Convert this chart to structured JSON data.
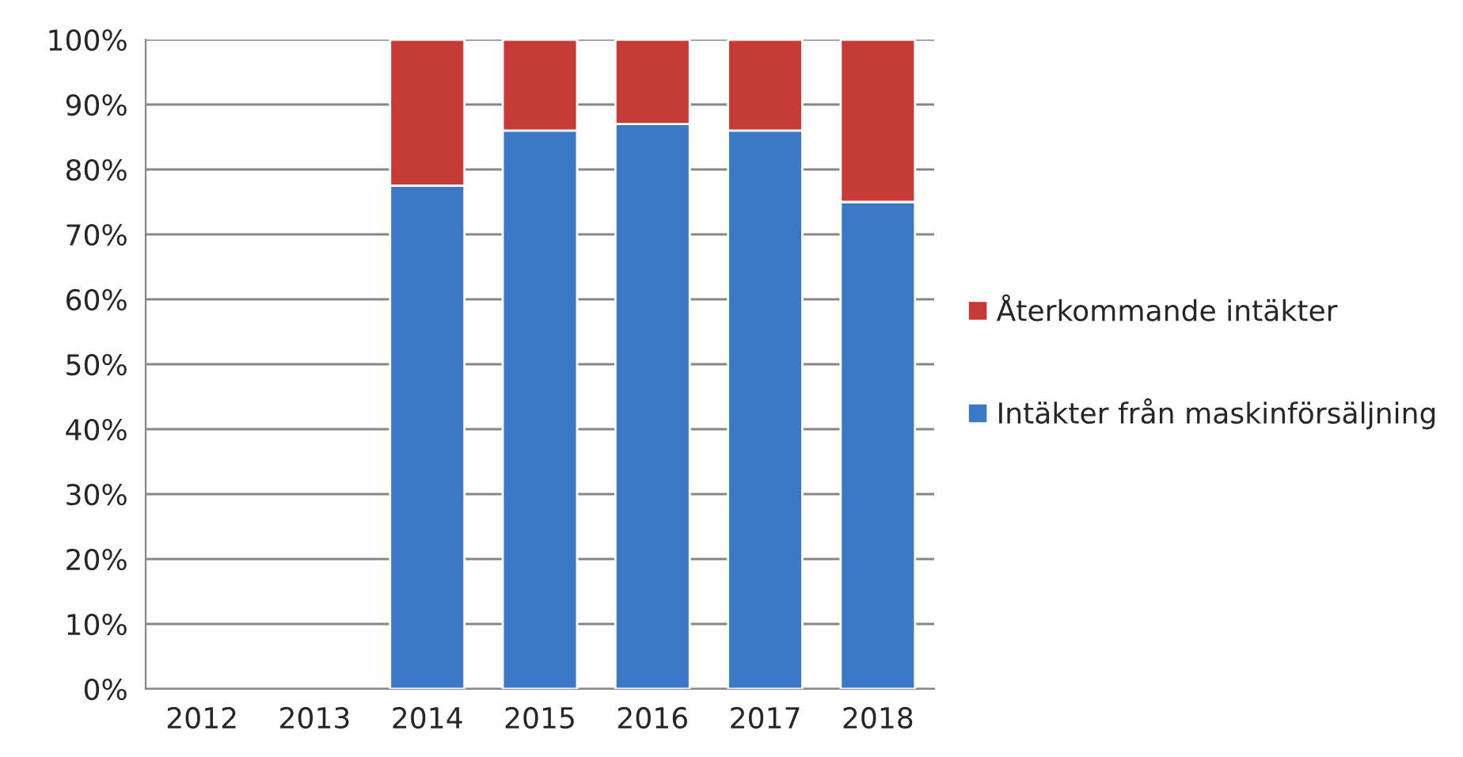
{
  "chart_data": {
    "type": "bar",
    "stacked": true,
    "categories": [
      "2012",
      "2013",
      "2014",
      "2015",
      "2016",
      "2017",
      "2018"
    ],
    "series": [
      {
        "name": "Intäkter från maskinförsäljning",
        "color": "#3b78c6",
        "values": [
          null,
          null,
          77.5,
          86,
          87,
          86,
          75
        ]
      },
      {
        "name": "Återkommande intäkter",
        "color": "#c73b37",
        "values": [
          null,
          null,
          22.5,
          14,
          13,
          14,
          25
        ]
      }
    ],
    "ylim": [
      0,
      100
    ],
    "yticks": [
      {
        "value": 0,
        "label": "0%"
      },
      {
        "value": 10,
        "label": "10%"
      },
      {
        "value": 20,
        "label": "20%"
      },
      {
        "value": 30,
        "label": "30%"
      },
      {
        "value": 40,
        "label": "40%"
      },
      {
        "value": 50,
        "label": "50%"
      },
      {
        "value": 60,
        "label": "60%"
      },
      {
        "value": 70,
        "label": "70%"
      },
      {
        "value": 80,
        "label": "80%"
      },
      {
        "value": 90,
        "label": "90%"
      },
      {
        "value": 100,
        "label": "100%"
      }
    ],
    "grid": "y",
    "legend": "right"
  }
}
